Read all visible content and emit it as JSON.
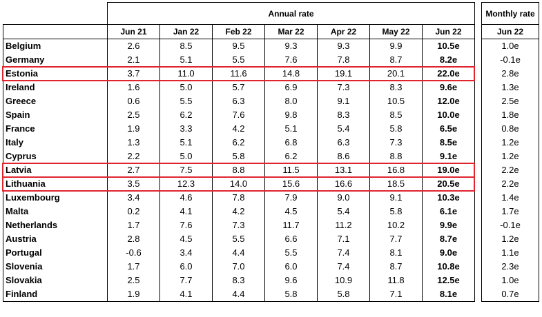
{
  "header": {
    "group_label": "Annual rate",
    "columns": [
      "Jun 21",
      "Jan 22",
      "Feb 22",
      "Mar 22",
      "Apr 22",
      "May 22",
      "Jun 22"
    ],
    "side_group_label": "Monthly rate",
    "side_column": "Jun 22"
  },
  "rows": [
    {
      "country": "Belgium",
      "values": [
        "2.6",
        "8.5",
        "9.5",
        "9.3",
        "9.3",
        "9.9",
        "10.5e"
      ],
      "monthly": "1.0e"
    },
    {
      "country": "Germany",
      "values": [
        "2.1",
        "5.1",
        "5.5",
        "7.6",
        "7.8",
        "8.7",
        "8.2e"
      ],
      "monthly": "-0.1e"
    },
    {
      "country": "Estonia",
      "values": [
        "3.7",
        "11.0",
        "11.6",
        "14.8",
        "19.1",
        "20.1",
        "22.0e"
      ],
      "monthly": "2.8e"
    },
    {
      "country": "Ireland",
      "values": [
        "1.6",
        "5.0",
        "5.7",
        "6.9",
        "7.3",
        "8.3",
        "9.6e"
      ],
      "monthly": "1.3e"
    },
    {
      "country": "Greece",
      "values": [
        "0.6",
        "5.5",
        "6.3",
        "8.0",
        "9.1",
        "10.5",
        "12.0e"
      ],
      "monthly": "2.5e"
    },
    {
      "country": "Spain",
      "values": [
        "2.5",
        "6.2",
        "7.6",
        "9.8",
        "8.3",
        "8.5",
        "10.0e"
      ],
      "monthly": "1.8e"
    },
    {
      "country": "France",
      "values": [
        "1.9",
        "3.3",
        "4.2",
        "5.1",
        "5.4",
        "5.8",
        "6.5e"
      ],
      "monthly": "0.8e"
    },
    {
      "country": "Italy",
      "values": [
        "1.3",
        "5.1",
        "6.2",
        "6.8",
        "6.3",
        "7.3",
        "8.5e"
      ],
      "monthly": "1.2e"
    },
    {
      "country": "Cyprus",
      "values": [
        "2.2",
        "5.0",
        "5.8",
        "6.2",
        "8.6",
        "8.8",
        "9.1e"
      ],
      "monthly": "1.2e"
    },
    {
      "country": "Latvia",
      "values": [
        "2.7",
        "7.5",
        "8.8",
        "11.5",
        "13.1",
        "16.8",
        "19.0e"
      ],
      "monthly": "2.2e"
    },
    {
      "country": "Lithuania",
      "values": [
        "3.5",
        "12.3",
        "14.0",
        "15.6",
        "16.6",
        "18.5",
        "20.5e"
      ],
      "monthly": "2.2e"
    },
    {
      "country": "Luxembourg",
      "values": [
        "3.4",
        "4.6",
        "7.8",
        "7.9",
        "9.0",
        "9.1",
        "10.3e"
      ],
      "monthly": "1.4e"
    },
    {
      "country": "Malta",
      "values": [
        "0.2",
        "4.1",
        "4.2",
        "4.5",
        "5.4",
        "5.8",
        "6.1e"
      ],
      "monthly": "1.7e"
    },
    {
      "country": "Netherlands",
      "values": [
        "1.7",
        "7.6",
        "7.3",
        "11.7",
        "11.2",
        "10.2",
        "9.9e"
      ],
      "monthly": "-0.1e"
    },
    {
      "country": "Austria",
      "values": [
        "2.8",
        "4.5",
        "5.5",
        "6.6",
        "7.1",
        "7.7",
        "8.7e"
      ],
      "monthly": "1.2e"
    },
    {
      "country": "Portugal",
      "values": [
        "-0.6",
        "3.4",
        "4.4",
        "5.5",
        "7.4",
        "8.1",
        "9.0e"
      ],
      "monthly": "1.1e"
    },
    {
      "country": "Slovenia",
      "values": [
        "1.7",
        "6.0",
        "7.0",
        "6.0",
        "7.4",
        "8.7",
        "10.8e"
      ],
      "monthly": "2.3e"
    },
    {
      "country": "Slovakia",
      "values": [
        "2.5",
        "7.7",
        "8.3",
        "9.6",
        "10.9",
        "11.8",
        "12.5e"
      ],
      "monthly": "1.0e"
    },
    {
      "country": "Finland",
      "values": [
        "1.9",
        "4.1",
        "4.4",
        "5.8",
        "5.8",
        "7.1",
        "8.1e"
      ],
      "monthly": "0.7e"
    }
  ],
  "highlight_color": "#e0242d",
  "highlighted_rows": [
    "Estonia",
    "Latvia",
    "Lithuania"
  ]
}
